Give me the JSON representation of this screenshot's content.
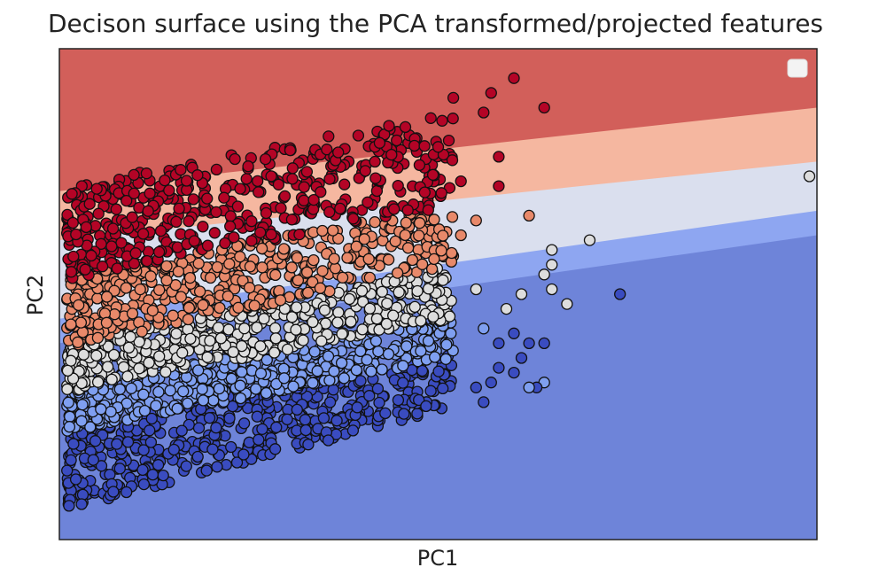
{
  "chart_data": {
    "type": "scatter",
    "title": "Decison surface using the PCA transformed/projected features",
    "xlabel": "PC1",
    "ylabel": "PC2",
    "xlim": [
      0,
      1
    ],
    "ylim": [
      0,
      1
    ],
    "ticks_shown": false,
    "grid": false,
    "legend": {
      "placement": "top-right",
      "entries": []
    },
    "decision_regions": [
      {
        "class": 4,
        "color": "#d25f5a",
        "boundary_below": [
          [
            0.0,
            0.71
          ],
          [
            1.0,
            0.88
          ]
        ]
      },
      {
        "class": 3,
        "color": "#f5b7a0",
        "boundary_below": [
          [
            0.0,
            0.61
          ],
          [
            1.0,
            0.77
          ]
        ]
      },
      {
        "class": 2,
        "color": "#dadfee",
        "boundary_below": [
          [
            0.0,
            0.45
          ],
          [
            1.0,
            0.67
          ]
        ]
      },
      {
        "class": 1,
        "color": "#8ea6f1",
        "boundary_below": [
          [
            0.0,
            0.4
          ],
          [
            1.0,
            0.62
          ]
        ]
      },
      {
        "class": 0,
        "color": "#6e84d9"
      }
    ],
    "class_colors": [
      "#3a4cc0",
      "#7f9ff0",
      "#dddddd",
      "#e8896a",
      "#b40426"
    ],
    "point_cloud": {
      "description_free": true,
      "band_left_x": 0.01,
      "band_right_x": 0.52,
      "class_bands": [
        {
          "class": 4,
          "y_low_left": 0.53,
          "y_high_left": 0.72,
          "y_low_right": 0.68,
          "y_high_right": 0.87
        },
        {
          "class": 3,
          "y_low_left": 0.39,
          "y_high_left": 0.54,
          "y_low_right": 0.56,
          "y_high_right": 0.68
        },
        {
          "class": 2,
          "y_low_left": 0.3,
          "y_high_left": 0.4,
          "y_low_right": 0.45,
          "y_high_right": 0.56
        },
        {
          "class": 1,
          "y_low_left": 0.22,
          "y_high_left": 0.32,
          "y_low_right": 0.37,
          "y_high_right": 0.46
        },
        {
          "class": 0,
          "y_low_left": 0.06,
          "y_high_left": 0.23,
          "y_low_right": 0.27,
          "y_high_right": 0.38
        }
      ],
      "outliers": [
        {
          "x": 0.6,
          "y": 0.94,
          "class": 4
        },
        {
          "x": 0.57,
          "y": 0.91,
          "class": 4
        },
        {
          "x": 0.64,
          "y": 0.88,
          "class": 4
        },
        {
          "x": 0.52,
          "y": 0.9,
          "class": 4
        },
        {
          "x": 0.56,
          "y": 0.87,
          "class": 4
        },
        {
          "x": 0.58,
          "y": 0.78,
          "class": 4
        },
        {
          "x": 0.5,
          "y": 0.8,
          "class": 4
        },
        {
          "x": 0.53,
          "y": 0.73,
          "class": 4
        },
        {
          "x": 0.58,
          "y": 0.72,
          "class": 4
        },
        {
          "x": 0.62,
          "y": 0.66,
          "class": 3
        },
        {
          "x": 0.55,
          "y": 0.65,
          "class": 3
        },
        {
          "x": 0.53,
          "y": 0.62,
          "class": 3
        },
        {
          "x": 0.99,
          "y": 0.74,
          "class": 2
        },
        {
          "x": 0.7,
          "y": 0.61,
          "class": 2
        },
        {
          "x": 0.65,
          "y": 0.59,
          "class": 2
        },
        {
          "x": 0.65,
          "y": 0.56,
          "class": 2
        },
        {
          "x": 0.64,
          "y": 0.54,
          "class": 2
        },
        {
          "x": 0.61,
          "y": 0.5,
          "class": 2
        },
        {
          "x": 0.65,
          "y": 0.51,
          "class": 2
        },
        {
          "x": 0.67,
          "y": 0.48,
          "class": 2
        },
        {
          "x": 0.59,
          "y": 0.47,
          "class": 2
        },
        {
          "x": 0.55,
          "y": 0.51,
          "class": 2
        },
        {
          "x": 0.74,
          "y": 0.5,
          "class": 0
        },
        {
          "x": 0.6,
          "y": 0.42,
          "class": 0
        },
        {
          "x": 0.62,
          "y": 0.4,
          "class": 0
        },
        {
          "x": 0.58,
          "y": 0.4,
          "class": 0
        },
        {
          "x": 0.56,
          "y": 0.43,
          "class": 1
        },
        {
          "x": 0.64,
          "y": 0.4,
          "class": 0
        },
        {
          "x": 0.61,
          "y": 0.37,
          "class": 0
        },
        {
          "x": 0.6,
          "y": 0.34,
          "class": 0
        },
        {
          "x": 0.64,
          "y": 0.32,
          "class": 1
        },
        {
          "x": 0.63,
          "y": 0.31,
          "class": 0
        },
        {
          "x": 0.62,
          "y": 0.31,
          "class": 1
        },
        {
          "x": 0.57,
          "y": 0.32,
          "class": 0
        },
        {
          "x": 0.55,
          "y": 0.31,
          "class": 0
        },
        {
          "x": 0.58,
          "y": 0.35,
          "class": 0
        },
        {
          "x": 0.56,
          "y": 0.28,
          "class": 0
        }
      ]
    }
  }
}
